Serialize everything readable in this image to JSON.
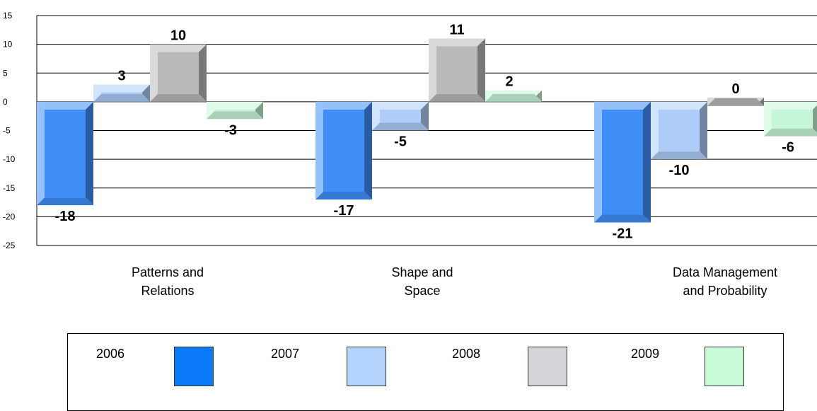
{
  "chart_data": {
    "type": "bar",
    "categories": [
      "Patterns and\nRelations",
      "Shape and\nSpace",
      "Data Management\nand Probability"
    ],
    "series": [
      {
        "name": "2006",
        "values": [
          -18,
          -17,
          -21
        ],
        "color": "#3f8ef8"
      },
      {
        "name": "2007",
        "values": [
          3,
          -5,
          -10
        ],
        "color": "#aecdf8"
      },
      {
        "name": "2008",
        "values": [
          10,
          11,
          0
        ],
        "color": "#b9b9b9"
      },
      {
        "name": "2009",
        "values": [
          -3,
          2,
          -6
        ],
        "color": "#c6f6d8"
      }
    ],
    "data_labels": [
      [
        "-18",
        "-17",
        "-21"
      ],
      [
        "3",
        "-5",
        "-10"
      ],
      [
        "10",
        "11",
        "0"
      ],
      [
        "-3",
        "2",
        "-6"
      ]
    ],
    "ylim": [
      -25,
      15
    ],
    "yticks": [
      15,
      10,
      5,
      0,
      -5,
      -10,
      -15,
      -20,
      -25
    ],
    "grid": true,
    "legend": {
      "position": "bottom",
      "swatch_colors": [
        "#0a7af8",
        "#b3d4fc",
        "#d7d3da",
        "#c8fcd8"
      ]
    }
  }
}
